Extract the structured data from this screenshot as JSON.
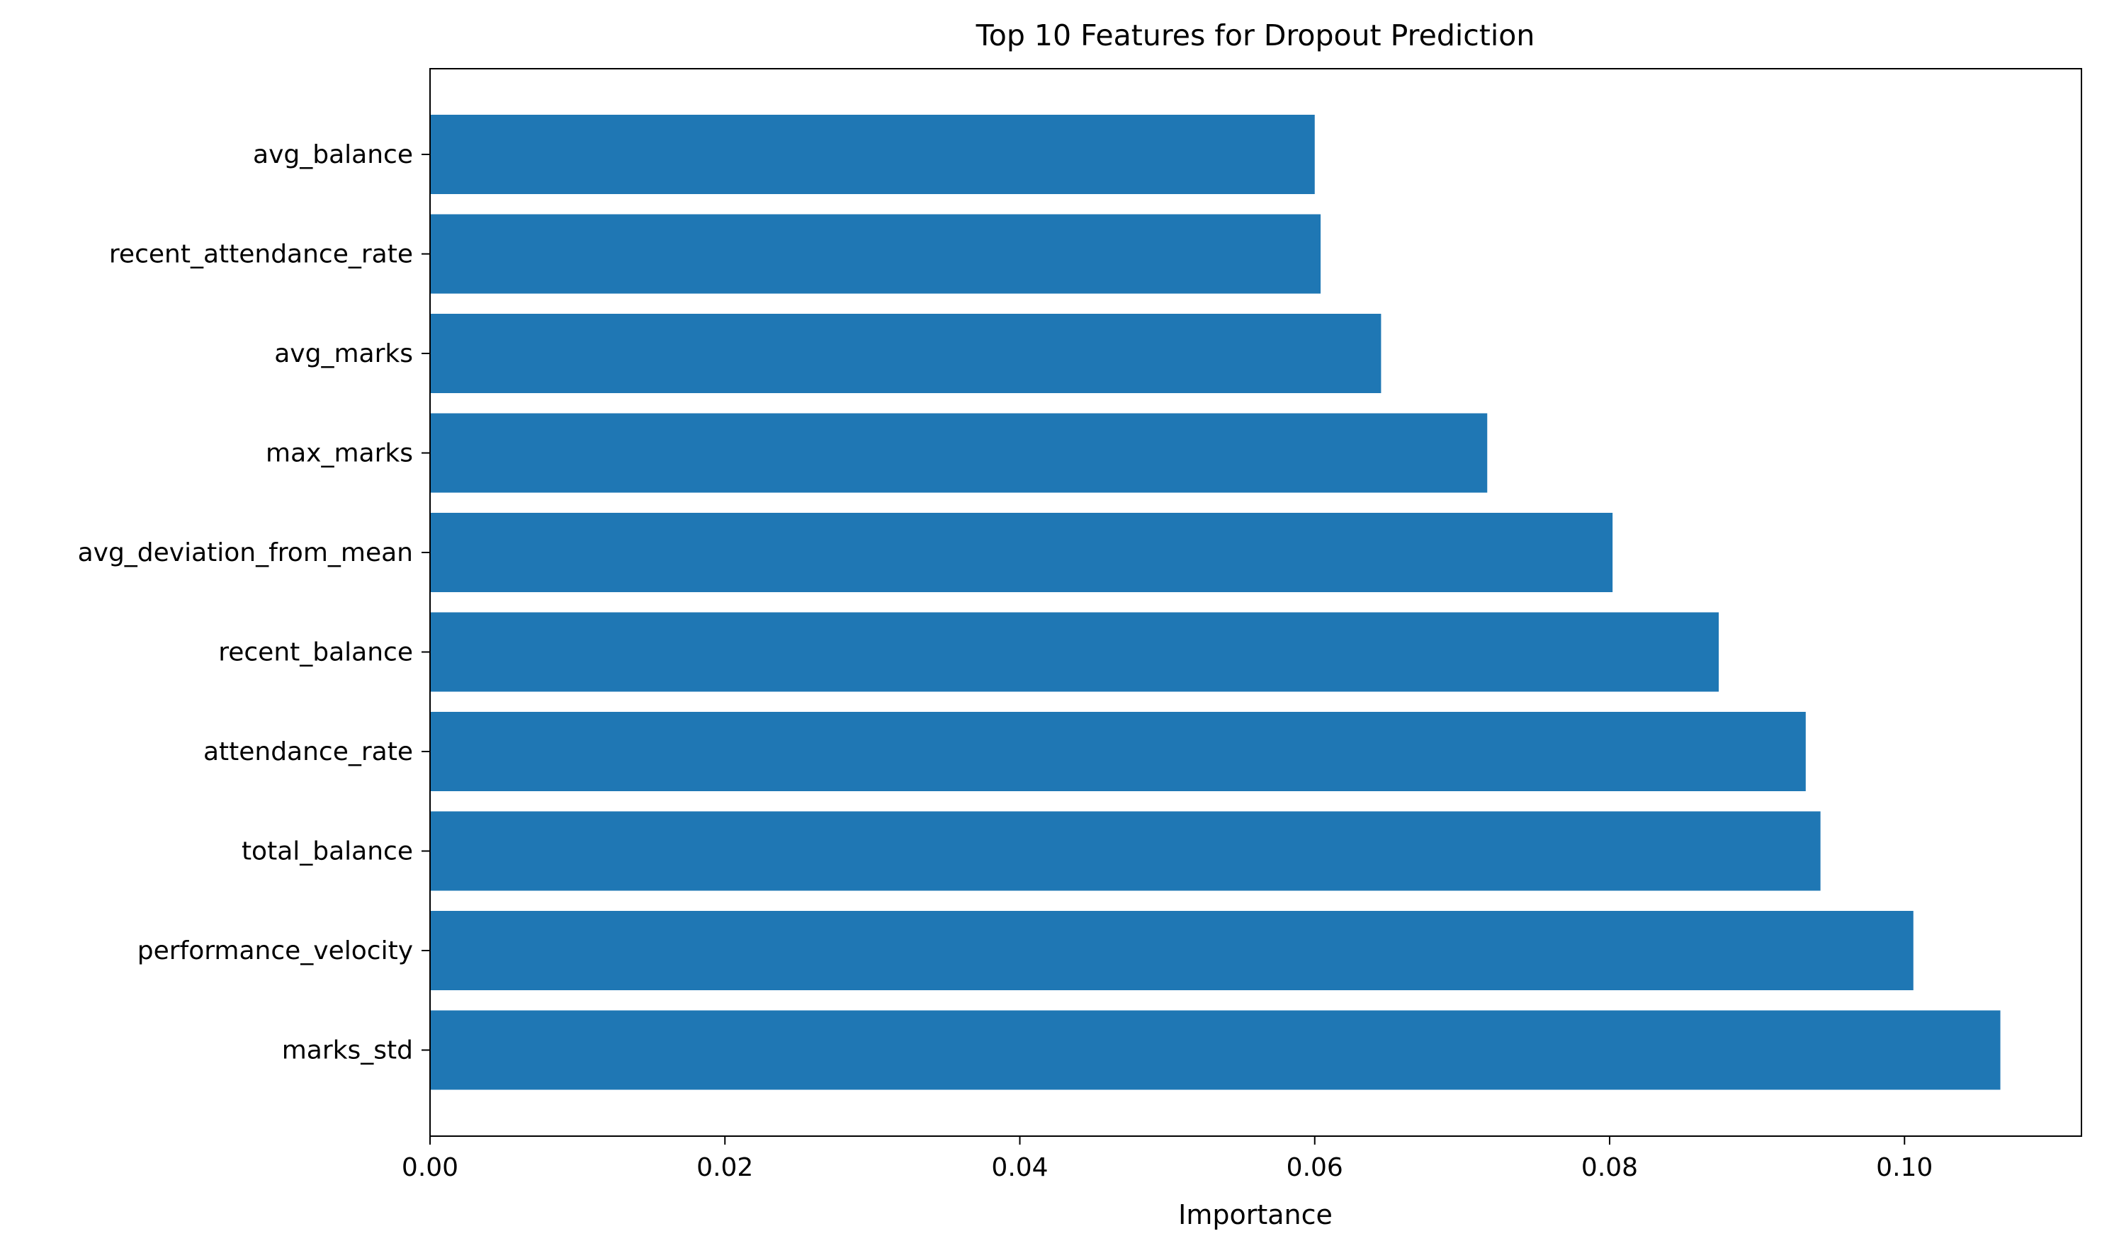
{
  "chart_data": {
    "type": "bar",
    "orientation": "horizontal",
    "title": "Top 10 Features for Dropout Prediction",
    "xlabel": "Importance",
    "ylabel": "",
    "xlim": [
      0,
      0.112
    ],
    "x_ticks": [
      0.0,
      0.02,
      0.04,
      0.06,
      0.08,
      0.1
    ],
    "x_tick_labels": [
      "0.00",
      "0.02",
      "0.04",
      "0.06",
      "0.08",
      "0.10"
    ],
    "categories": [
      "avg_balance",
      "recent_attendance_rate",
      "avg_marks",
      "max_marks",
      "avg_deviation_from_mean",
      "recent_balance",
      "attendance_rate",
      "total_balance",
      "performance_velocity",
      "marks_std"
    ],
    "values": [
      0.06,
      0.0604,
      0.0645,
      0.0717,
      0.0802,
      0.0874,
      0.0933,
      0.0943,
      0.1006,
      0.1065
    ],
    "bar_color": "#1f77b4",
    "grid": false,
    "legend": "none"
  }
}
